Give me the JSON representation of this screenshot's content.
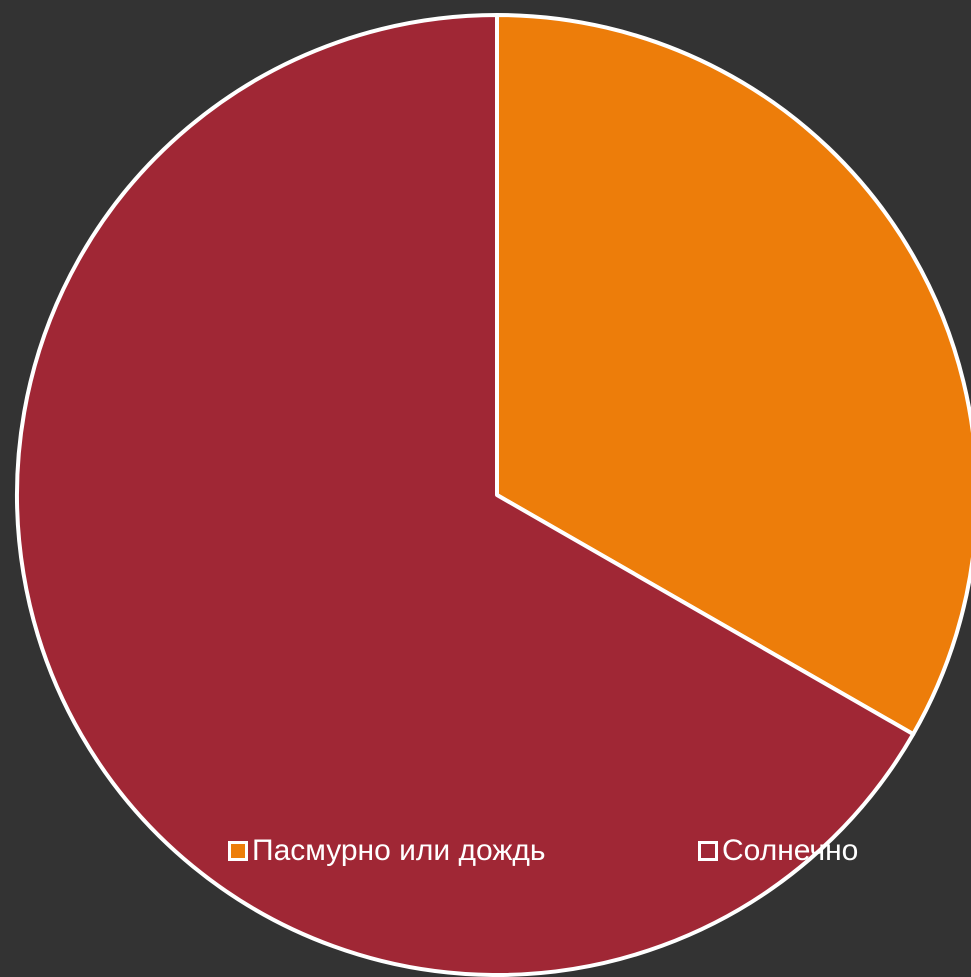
{
  "chart_data": {
    "type": "pie",
    "title": "",
    "categories": [
      "Пасмурно или дождь",
      "Солнечно"
    ],
    "values": [
      33.3,
      66.7
    ],
    "colors": [
      "#ED7D0A",
      "#A02735"
    ],
    "start_angle_deg": 0,
    "direction": "clockwise",
    "slice_border_color": "#ffffff",
    "legend": {
      "placement": "bottom",
      "entries": [
        {
          "label": "Пасмурно или дождь",
          "color": "#ED7D0A"
        },
        {
          "label": "Солнечно",
          "color": "#A02735"
        }
      ]
    }
  },
  "background_color": "#333333"
}
